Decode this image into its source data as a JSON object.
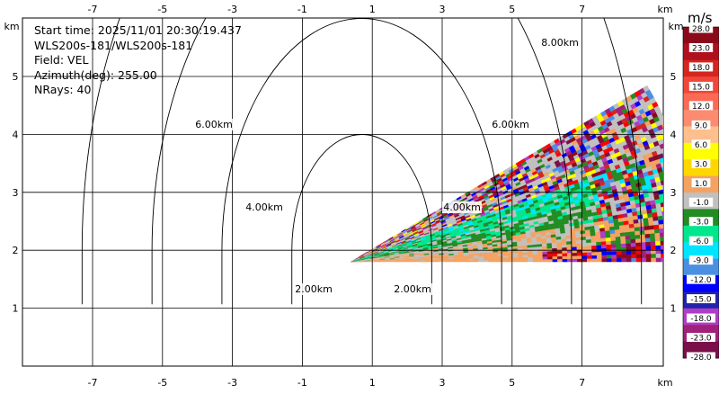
{
  "info": {
    "start_time": "Start time: 2025/11/01 20:30:19.437",
    "instrument": "WLS200s-181/WLS200s-181",
    "field": "Field: VEL",
    "azimuth": "Azimuth(deg): 255.00",
    "nrays": "NRays: 40"
  },
  "chart_data": {
    "type": "heatmap",
    "subtype": "polar-sector-scan (RHI-style range-height display)",
    "x_axis": {
      "unit_label": "km",
      "ticks": [
        -7,
        -5,
        -3,
        -1,
        1,
        3,
        5,
        7
      ],
      "tick_labels": [
        "-7",
        "-5",
        "-3",
        "-1",
        "1",
        "3",
        "5",
        "7"
      ],
      "range": [
        -8.9,
        9.2
      ],
      "shown_top_and_bottom": true
    },
    "y_axis": {
      "unit_label": "km",
      "ticks": [
        1,
        2,
        3,
        4,
        5
      ],
      "tick_labels": [
        "1",
        "2",
        "3",
        "4",
        "5"
      ],
      "range": [
        0,
        6.0
      ],
      "shown_left_and_right": true
    },
    "grid": true,
    "range_rings": {
      "center": [
        0.7,
        2.0
      ],
      "radii_km": [
        2,
        4,
        6,
        8
      ],
      "labels": [
        "2.00km",
        "4.00km",
        "6.00km",
        "8.00km"
      ]
    },
    "scan_sector": {
      "origin": [
        0.7,
        1.8
      ],
      "max_range_km": 8.8,
      "elevation_deg_range": [
        0,
        23.5
      ],
      "n_rays": 40,
      "range_bins": 70
    },
    "colorbar": {
      "title": "m/s",
      "tick_labels": [
        "28.0",
        "23.0",
        "18.0",
        "15.0",
        "12.0",
        "9.0",
        "6.0",
        "3.0",
        "1.0",
        "-1.0",
        "-3.0",
        "-6.0",
        "-9.0",
        "-12.0",
        "-15.0",
        "-18.0",
        "-23.0",
        "-28.0"
      ],
      "colors": [
        "#8b0a1a",
        "#b0101e",
        "#d4261f",
        "#f0473a",
        "#fb6a55",
        "#fd8b70",
        "#fdbf8d",
        "#ffff00",
        "#ffd700",
        "#f4a261",
        "#c0c0c0",
        "#228b22",
        "#00e68c",
        "#00e5ff",
        "#4a90e2",
        "#0000ff",
        "#2222aa",
        "#b03cc8",
        "#a0207a",
        "#7a0f4a"
      ]
    }
  }
}
